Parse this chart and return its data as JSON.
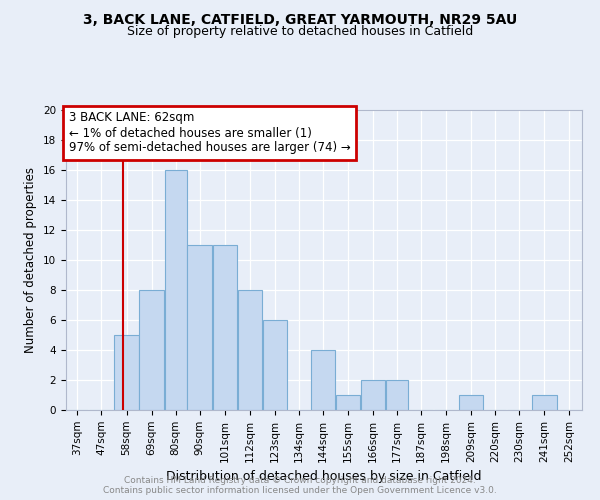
{
  "title1": "3, BACK LANE, CATFIELD, GREAT YARMOUTH, NR29 5AU",
  "title2": "Size of property relative to detached houses in Catfield",
  "xlabel": "Distribution of detached houses by size in Catfield",
  "ylabel": "Number of detached properties",
  "categories": [
    "37sqm",
    "47sqm",
    "58sqm",
    "69sqm",
    "80sqm",
    "90sqm",
    "101sqm",
    "112sqm",
    "123sqm",
    "134sqm",
    "144sqm",
    "155sqm",
    "166sqm",
    "177sqm",
    "187sqm",
    "198sqm",
    "209sqm",
    "220sqm",
    "230sqm",
    "241sqm",
    "252sqm"
  ],
  "values": [
    0,
    0,
    5,
    8,
    16,
    11,
    11,
    8,
    6,
    0,
    4,
    1,
    2,
    2,
    0,
    0,
    1,
    0,
    0,
    1,
    0
  ],
  "bar_color": "#c5d8f0",
  "bar_edge_color": "#7aadd4",
  "bin_edges": [
    37,
    47,
    58,
    69,
    80,
    90,
    101,
    112,
    123,
    134,
    144,
    155,
    166,
    177,
    187,
    198,
    209,
    220,
    230,
    241,
    252,
    263
  ],
  "property_line_x": 62,
  "xlim_left": 37,
  "xlim_right": 263,
  "ylim": [
    0,
    20
  ],
  "annotation_title": "3 BACK LANE: 62sqm",
  "annotation_line1": "← 1% of detached houses are smaller (1)",
  "annotation_line2": "97% of semi-detached houses are larger (74) →",
  "footer1": "Contains HM Land Registry data © Crown copyright and database right 2024.",
  "footer2": "Contains public sector information licensed under the Open Government Licence v3.0.",
  "bg_color": "#e8eef8",
  "annotation_box_color": "#ffffff",
  "annotation_box_edge": "#cc0000",
  "vline_color": "#cc0000",
  "title_fontsize": 10,
  "subtitle_fontsize": 9,
  "tick_fontsize": 7.5,
  "ylabel_fontsize": 8.5,
  "xlabel_fontsize": 9,
  "annotation_fontsize": 8.5,
  "footer_fontsize": 6.5
}
